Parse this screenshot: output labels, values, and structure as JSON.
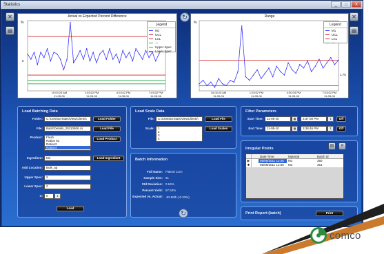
{
  "window": {
    "title": "Statistics",
    "minimize": "_",
    "maximize": "□",
    "close": "X"
  },
  "chart_left": {
    "title": "Actual vs Expected Percent Difference",
    "y_unit": "%",
    "y_tick": "0",
    "x_ticks": [
      "10:03:25 AM\n11-05-06",
      "1:03:02 PM\n11-05-06",
      "4:03:02 PM\n11-05-06",
      "7:03:02 PM\n11-05-06"
    ],
    "legend_title": "Legend",
    "legend": [
      "M1",
      "UCL",
      "LCL",
      "—",
      "Upper Spec",
      "Lower Spec"
    ]
  },
  "chart_right": {
    "title": "Range",
    "y_unit": "%",
    "right_value": "1.75",
    "x_ticks": [
      "10:03:25 AM\n11-05-06",
      "1:03:02 PM\n11-05-06",
      "4:00:03 PM\n11-05-06",
      "7:03:02 PM\n11-05-06"
    ],
    "legend_title": "Legend",
    "legend": [
      "M1",
      "UCL",
      "LCL",
      "—"
    ]
  },
  "chart_data": [
    {
      "type": "line",
      "title": "Actual vs Expected Percent Difference",
      "ylabel": "%",
      "x_ticks": [
        "10:03:25 AM 11-05-06",
        "1:03:02 PM 11-05-06",
        "4:03:02 PM 11-05-06",
        "7:03:02 PM 11-05-06"
      ],
      "ylim": [
        -1,
        1
      ],
      "grid": false,
      "legend_position": "top-right",
      "series": [
        {
          "name": "M1",
          "color": "#3333ff",
          "values": [
            0.05,
            -0.1,
            0.1,
            -0.25,
            0.1,
            -0.05,
            0.2,
            -0.15,
            0.1,
            0.05,
            -0.1,
            -0.4,
            -0.1,
            0.95,
            -0.2,
            -0.05,
            0.15,
            -0.1,
            0.2,
            -0.15,
            0.1,
            -0.2,
            0.05,
            0.15,
            -0.1,
            0.2,
            -0.1,
            0.05,
            -0.2,
            0.15,
            -0.05,
            0.1,
            -0.15,
            0.2,
            0.05,
            -0.1,
            0.15,
            -0.05,
            0.1,
            -0.15,
            0.05,
            0.2,
            0.1
          ]
        },
        {
          "name": "UCL",
          "color": "#cc2222",
          "values": [
            0.55
          ]
        },
        {
          "name": "LCL",
          "color": "#cc2222",
          "values": [
            -0.55
          ]
        },
        {
          "name": "Upper Spec",
          "color": "#22aa44",
          "values": [
            -0.7
          ]
        },
        {
          "name": "Lower Spec",
          "color": "#22aa44",
          "values": [
            -0.8
          ]
        }
      ]
    },
    {
      "type": "line",
      "title": "Range",
      "ylabel": "%",
      "x_ticks": [
        "10:03:25 AM 11-05-06",
        "1:03:02 PM 11-05-06",
        "4:00:03 PM 11-05-06",
        "7:03:02 PM 11-05-06"
      ],
      "ylim": [
        0,
        4
      ],
      "grid": false,
      "legend_position": "top-right",
      "series": [
        {
          "name": "M1",
          "color": "#3333ff",
          "values": [
            0.4,
            0.6,
            0.3,
            0.5,
            0.2,
            0.7,
            0.4,
            0.3,
            0.6,
            0.5,
            1.1,
            3.7,
            0.8,
            0.6,
            0.9,
            1.2,
            0.7,
            1.0,
            1.3,
            0.8,
            1.4,
            1.1,
            0.9,
            1.6,
            1.2,
            1.0,
            1.5,
            1.3,
            1.7,
            1.1,
            1.4,
            1.8,
            1.3,
            1.6,
            1.9,
            1.5,
            1.75
          ]
        },
        {
          "name": "UCL",
          "color": "#cc2222",
          "values": [
            1.75
          ]
        },
        {
          "name": "LCL",
          "color": "#cc2222",
          "values": [
            0.3
          ]
        }
      ]
    }
  ],
  "load_batching": {
    "title": "Load Batching Data",
    "folder_label": "Folder:",
    "folder_value": "C:\\CMS\\arrStats\\ViewClients\\",
    "load_folder": "Load Folder",
    "file_label": "File:",
    "file_value": "BatchDetails_20110506.cs",
    "load_file": "Load File",
    "product_label": "Product:",
    "products": [
      "Flush",
      "Ration 81",
      "Ration2",
      "Ration4"
    ],
    "load_product": "Load Product",
    "ingredient_label": "Ingredient:",
    "ingredient_value": "M1",
    "load_ingredient": "Load Ingredient",
    "add_location_label": "Add Location:",
    "add_location_value": "Bulk_ap",
    "upper_spec_label": "Upper Spec:",
    "upper_spec_value": "2",
    "lower_spec_label": "Lower Spec:",
    "lower_spec_value": "2",
    "s_label": "S:",
    "s_value": "0",
    "load": "Load"
  },
  "load_scale": {
    "title": "Load Scale Data",
    "file_label": "File:",
    "file_value": "C:\\CMS\\arrStats\\ViewClients\\",
    "load_file": "Load File",
    "scale_label": "Scale:",
    "scales": [
      "1",
      "2",
      "3",
      "4"
    ],
    "load_scales": "Load Scales"
  },
  "batch_info": {
    "title": "Batch Information",
    "rows": [
      {
        "label": "Full Name:",
        "value": "Flaked Corn"
      },
      {
        "label": "Sample Size:",
        "value": "91"
      },
      {
        "label": "Std Deviation:",
        "value": "0.64%"
      },
      {
        "label": "Percent Yield:",
        "value": "97.53%"
      },
      {
        "label": "Expected vs. Actual:",
        "value": "-83.88lb (-0.33%)"
      }
    ]
  },
  "filter": {
    "title": "Filter Parameters",
    "start_label": "Start Time:",
    "start_date": "11-05-10",
    "start_time": "3:37:00 PM",
    "end_label": "End Time:",
    "end_date": "11-05-10",
    "end_time": "3:38:46 PM",
    "off1": "Off",
    "off2": "Off"
  },
  "irregular": {
    "title": "Irregular Points",
    "headers": [
      "Date Time",
      "Material",
      "Batch Id"
    ],
    "rows": [
      {
        "marker": "▶",
        "date": "05/06/2011 12:48",
        "material": "M1",
        "batch": "360"
      },
      {
        "marker": "✱",
        "date": "05/06/2011 12:55",
        "material": "M1",
        "batch": "361"
      }
    ]
  },
  "print_report": {
    "title": "Print Report (batch)",
    "print": "Print"
  },
  "brand": {
    "name": "comco",
    "color": "#2e8b3e"
  }
}
